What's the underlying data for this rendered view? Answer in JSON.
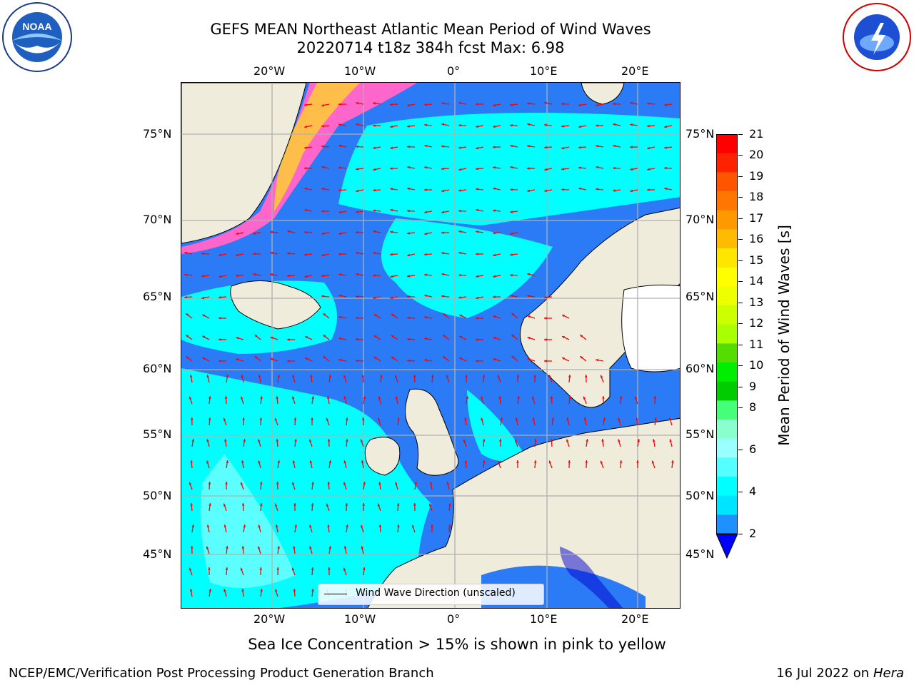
{
  "header": {
    "title_line1": "GEFS MEAN Northeast Atlantic Mean Period of Wind Waves",
    "title_line2": "20220714 t18z 384h fcst   Max: 6.98"
  },
  "logos": {
    "noaa_text": "NOAA",
    "noaa_ring_text": "NATIONAL OCEANIC AND ATMOSPHERIC ADMINISTRATION · U.S. DEPARTMENT OF COMMERCE",
    "nws_ring_text": "NATIONAL WEATHER SERVICE"
  },
  "map": {
    "lon_ticks": [
      "20°W",
      "10°W",
      "0°",
      "10°E",
      "20°E"
    ],
    "lat_ticks": [
      "75°N",
      "70°N",
      "65°N",
      "60°N",
      "55°N",
      "50°N",
      "45°N"
    ],
    "legend_label": "Wind Wave Direction (unscaled)",
    "colors": {
      "ocean_low": "#2b7bf6",
      "ocean_mid": "#00ffff",
      "ocean_high": "#99ffff",
      "land": "#efecdc",
      "arrow": "#ff0000",
      "ice_pink": "#ff66cc",
      "ice_yellow": "#ffcc33"
    }
  },
  "colorbar": {
    "label": "Mean Period of Wind Waves [s]",
    "ticks": [
      "21",
      "20",
      "19",
      "18",
      "17",
      "16",
      "15",
      "14",
      "13",
      "12",
      "11",
      "10",
      "9",
      "8",
      "7",
      "6",
      "5",
      "4",
      "3",
      "2"
    ],
    "display_ticks": [
      "21",
      "20",
      "19",
      "18",
      "17",
      "16",
      "15",
      "14",
      "13",
      "12",
      "11",
      "10",
      "9",
      "8",
      "6",
      "4",
      "2"
    ],
    "colors_top_to_bottom": [
      "#ff0000",
      "#ff2200",
      "#ff5500",
      "#ff7700",
      "#ff9900",
      "#ffbb00",
      "#ffe600",
      "#ffff00",
      "#eeff00",
      "#ccff00",
      "#aaff00",
      "#55dd00",
      "#00ee00",
      "#00cc00",
      "#44ff77",
      "#88ffcc",
      "#99ffff",
      "#55ffff",
      "#00ffff",
      "#00e5ff",
      "#1e90ff",
      "#0000ff"
    ]
  },
  "footer": {
    "ice_note": "Sea Ice Concentration > 15% is shown in pink to yellow",
    "branch": "NCEP/EMC/Verification Post Processing Product Generation Branch",
    "date_prefix": "16 Jul 2022 on ",
    "machine": "Hera"
  }
}
